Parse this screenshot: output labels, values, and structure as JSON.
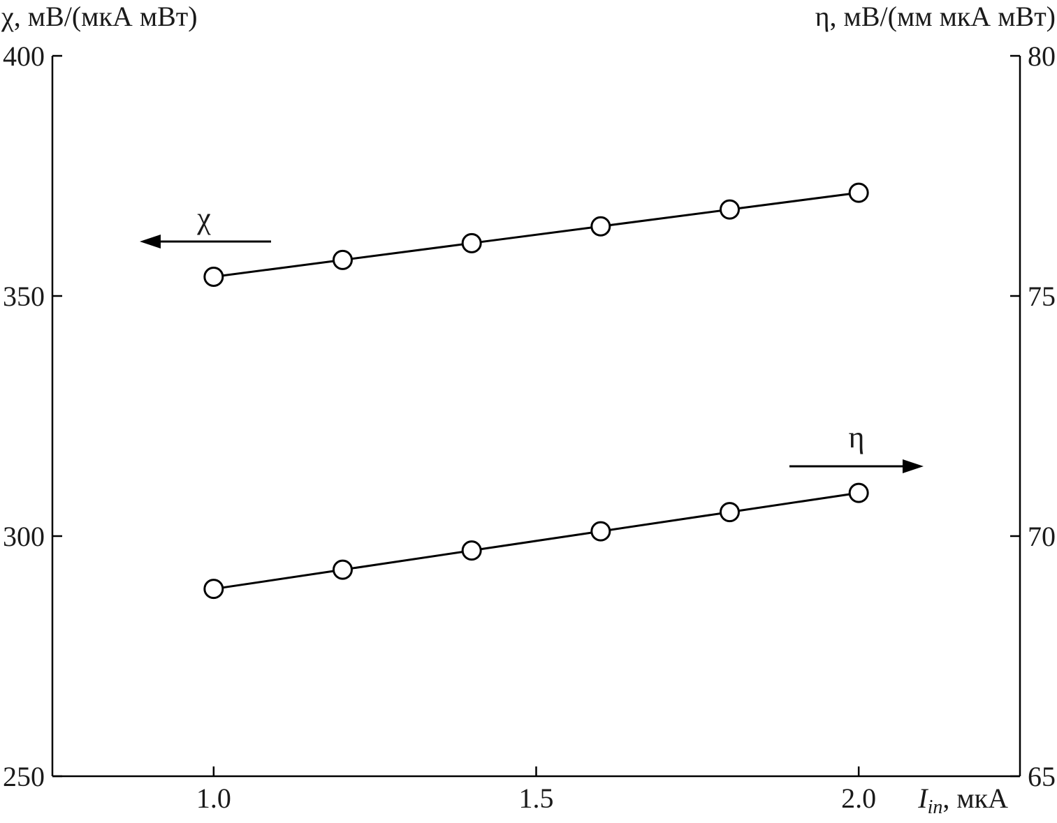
{
  "chart_data": {
    "type": "line",
    "x": [
      1.0,
      1.2,
      1.4,
      1.6,
      1.8,
      2.0
    ],
    "series": [
      {
        "name": "χ",
        "axis": "left",
        "values": [
          354,
          357.5,
          361,
          364.5,
          368,
          371.5
        ]
      },
      {
        "name": "η",
        "axis": "right",
        "values": [
          68.9,
          69.3,
          69.7,
          70.1,
          70.5,
          70.9
        ]
      }
    ],
    "xlim": [
      0.75,
      2.25
    ],
    "ylim_left": [
      250,
      400
    ],
    "ylim_right": [
      65,
      80
    ],
    "x_ticks": [
      "1.0",
      "1.5",
      "2.0"
    ],
    "x_tick_values": [
      1.0,
      1.5,
      2.0
    ],
    "y_left_ticks": [
      "250",
      "300",
      "350",
      "400"
    ],
    "y_left_tick_values": [
      250,
      300,
      350,
      400
    ],
    "y_right_ticks": [
      "65",
      "70",
      "75",
      "80"
    ],
    "y_right_tick_values": [
      65,
      70,
      75,
      80
    ],
    "ylabel_left": "χ, мВ/(мкА мВт)",
    "ylabel_right": "η, мВ/(мм мкА мВт)",
    "xlabel_symbol": "I",
    "xlabel_subscript": "in",
    "xlabel_unit": ", мкА",
    "grid": false,
    "marker": "open-circle",
    "annotations": [
      {
        "text": "χ",
        "arrow": "left"
      },
      {
        "text": "η",
        "arrow": "right"
      }
    ]
  }
}
